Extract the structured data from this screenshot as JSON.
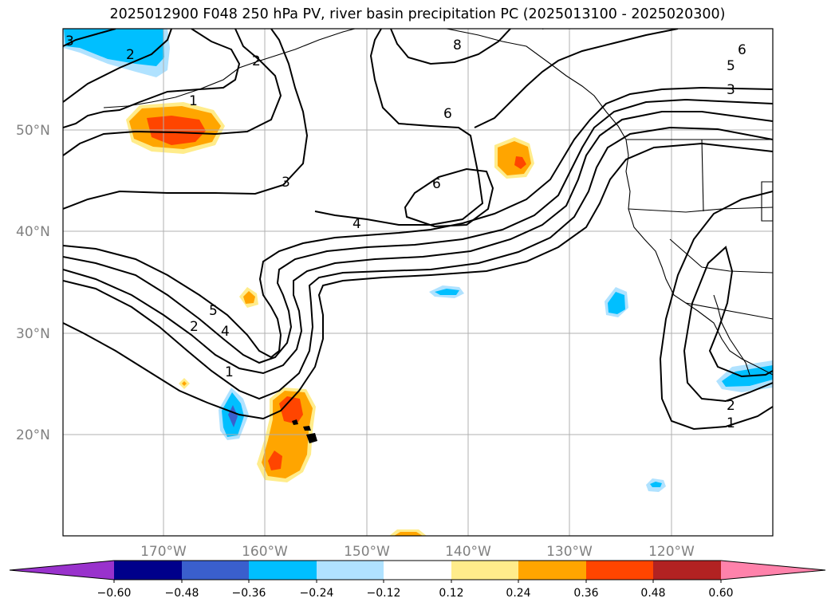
{
  "title": "2025012900 F048 250 hPa PV, river basin precipitation PC (2025013100 - 2025020300)",
  "map": {
    "lat_labels": [
      "50°N",
      "40°N",
      "30°N",
      "20°N"
    ],
    "lon_labels": [
      "170°W",
      "160°W",
      "150°W",
      "140°W",
      "130°W",
      "120°W"
    ],
    "contour_labels": [
      "3",
      "2",
      "2",
      "1",
      "8",
      "6",
      "6",
      "5",
      "3",
      "3",
      "6",
      "4",
      "5",
      "4",
      "2",
      "1",
      "2",
      "1"
    ]
  },
  "colorbar": {
    "ticks": [
      "−0.60",
      "−0.48",
      "−0.36",
      "−0.24",
      "−0.12",
      "0.12",
      "0.24",
      "0.36",
      "0.48",
      "0.60"
    ],
    "colors": [
      "#9932cc",
      "#00008b",
      "#3a5fcd",
      "#00bfff",
      "#b0e2ff",
      "#ffffff",
      "#ffec8b",
      "#ffa500",
      "#ff4500",
      "#b22222",
      "#ff82ab"
    ]
  }
}
